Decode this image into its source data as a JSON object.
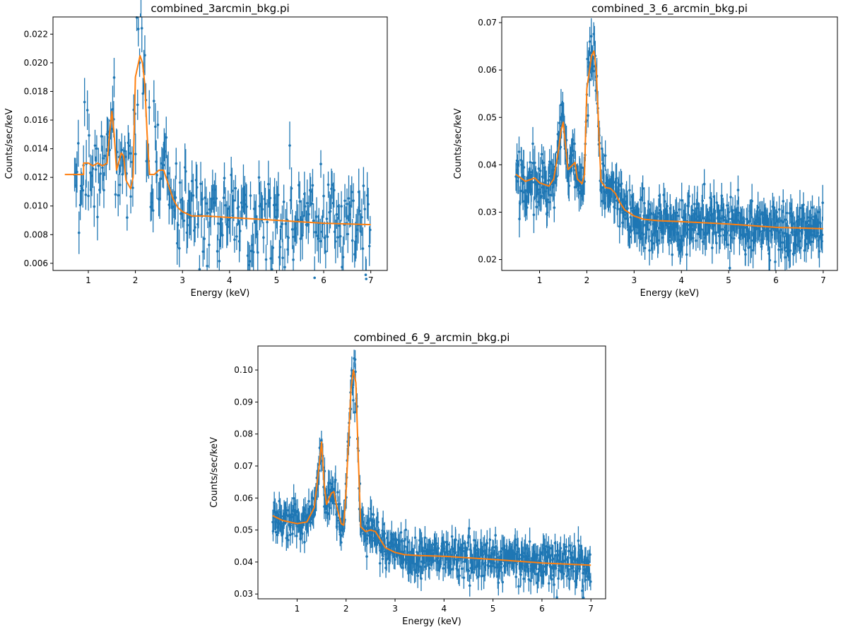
{
  "chart_data": [
    {
      "type": "scatter",
      "title": "combined_3arcmin_bkg.pi",
      "xlabel": "Energy (keV)",
      "ylabel": "Counts/sec/keV",
      "xlim": [
        0.25,
        7.35
      ],
      "ylim": [
        0.0055,
        0.0232
      ],
      "xticks": [
        1,
        2,
        3,
        4,
        5,
        6,
        7
      ],
      "yticks": [
        0.006,
        0.008,
        0.01,
        0.012,
        0.014,
        0.016,
        0.018,
        0.02,
        0.022
      ],
      "ytick_labels": [
        "0.006",
        "0.008",
        "0.010",
        "0.012",
        "0.014",
        "0.016",
        "0.018",
        "0.020",
        "0.022"
      ],
      "grid": false,
      "data_color": "#1f77b4",
      "model_color": "#ff7f0e",
      "series": [
        {
          "kind": "data",
          "xrange": [
            0.7,
            7.0
          ],
          "n": 320,
          "noise": 0.0018,
          "err": 0.0013
        },
        {
          "kind": "model",
          "x": [
            0.5,
            0.9,
            0.9,
            1.0,
            1.1,
            1.2,
            1.3,
            1.4,
            1.45,
            1.5,
            1.55,
            1.6,
            1.7,
            1.75,
            1.8,
            1.9,
            1.95,
            2.0,
            2.1,
            2.15,
            2.2,
            2.25,
            2.3,
            2.4,
            2.5,
            2.6,
            2.7,
            2.8,
            2.9,
            3.0,
            3.2,
            3.5,
            4.0,
            5.0,
            6.0,
            7.0
          ],
          "y": [
            0.0122,
            0.0122,
            0.013,
            0.013,
            0.0128,
            0.013,
            0.0128,
            0.013,
            0.015,
            0.0166,
            0.015,
            0.0125,
            0.0137,
            0.0135,
            0.0118,
            0.0112,
            0.012,
            0.019,
            0.0205,
            0.02,
            0.0185,
            0.015,
            0.0122,
            0.0122,
            0.0125,
            0.0125,
            0.0115,
            0.0105,
            0.0099,
            0.0096,
            0.0093,
            0.0093,
            0.0092,
            0.009,
            0.0088,
            0.0087
          ]
        }
      ]
    },
    {
      "type": "scatter",
      "title": "combined_3_6_arcmin_bkg.pi",
      "xlabel": "Energy (keV)",
      "ylabel": "Counts/sec/keV",
      "xlim": [
        0.2,
        7.3
      ],
      "ylim": [
        0.0177,
        0.0712
      ],
      "xticks": [
        1,
        2,
        3,
        4,
        5,
        6,
        7
      ],
      "yticks": [
        0.02,
        0.03,
        0.04,
        0.05,
        0.06,
        0.07
      ],
      "ytick_labels": [
        "0.02",
        "0.03",
        "0.04",
        "0.05",
        "0.06",
        "0.07"
      ],
      "grid": false,
      "data_color": "#1f77b4",
      "model_color": "#ff7f0e",
      "series": [
        {
          "kind": "data",
          "xrange": [
            0.5,
            7.0
          ],
          "n": 620,
          "noise": 0.003,
          "err": 0.003
        },
        {
          "kind": "model",
          "x": [
            0.5,
            0.7,
            0.9,
            1.0,
            1.2,
            1.3,
            1.4,
            1.45,
            1.5,
            1.55,
            1.6,
            1.7,
            1.75,
            1.8,
            1.9,
            1.95,
            2.0,
            2.1,
            2.15,
            2.2,
            2.25,
            2.3,
            2.4,
            2.5,
            2.6,
            2.7,
            2.8,
            3.0,
            3.2,
            3.5,
            4.0,
            5.0,
            6.0,
            7.0
          ],
          "y": [
            0.038,
            0.0365,
            0.0372,
            0.0362,
            0.0355,
            0.037,
            0.043,
            0.047,
            0.049,
            0.044,
            0.039,
            0.04,
            0.0405,
            0.037,
            0.036,
            0.038,
            0.056,
            0.063,
            0.064,
            0.06,
            0.048,
            0.0365,
            0.0352,
            0.035,
            0.034,
            0.032,
            0.0305,
            0.0292,
            0.0285,
            0.0282,
            0.028,
            0.0275,
            0.0268,
            0.0265
          ]
        }
      ]
    },
    {
      "type": "scatter",
      "title": "combined_6_9_arcmin_bkg.pi",
      "xlabel": "Energy (keV)",
      "ylabel": "Counts/sec/keV",
      "xlim": [
        0.2,
        7.3
      ],
      "ylim": [
        0.0285,
        0.1075
      ],
      "xticks": [
        1,
        2,
        3,
        4,
        5,
        6,
        7
      ],
      "yticks": [
        0.03,
        0.04,
        0.05,
        0.06,
        0.07,
        0.08,
        0.09,
        0.1
      ],
      "ytick_labels": [
        "0.03",
        "0.04",
        "0.05",
        "0.06",
        "0.07",
        "0.08",
        "0.09",
        "0.10"
      ],
      "grid": false,
      "data_color": "#1f77b4",
      "model_color": "#ff7f0e",
      "series": [
        {
          "kind": "data",
          "xrange": [
            0.5,
            7.0
          ],
          "n": 680,
          "noise": 0.0032,
          "err": 0.0035
        },
        {
          "kind": "model",
          "x": [
            0.5,
            0.7,
            1.0,
            1.2,
            1.35,
            1.45,
            1.5,
            1.55,
            1.6,
            1.7,
            1.75,
            1.8,
            1.9,
            1.95,
            2.0,
            2.1,
            2.15,
            2.2,
            2.25,
            2.3,
            2.4,
            2.5,
            2.6,
            2.7,
            2.8,
            3.0,
            3.2,
            3.5,
            4.0,
            5.0,
            6.0,
            7.0
          ],
          "y": [
            0.0545,
            0.053,
            0.052,
            0.0525,
            0.057,
            0.07,
            0.0775,
            0.065,
            0.058,
            0.0615,
            0.062,
            0.058,
            0.052,
            0.0515,
            0.062,
            0.094,
            0.1,
            0.096,
            0.072,
            0.051,
            0.0495,
            0.05,
            0.0495,
            0.047,
            0.0445,
            0.043,
            0.0423,
            0.042,
            0.0418,
            0.0408,
            0.0397,
            0.039
          ]
        }
      ]
    }
  ]
}
